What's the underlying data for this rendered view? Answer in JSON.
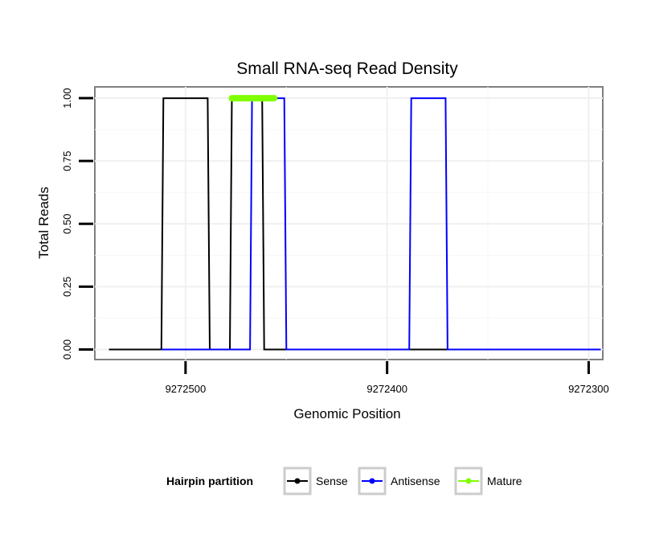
{
  "chart_data": {
    "type": "line",
    "title": "Small RNA-seq Read Density",
    "xlabel": "Genomic Position",
    "ylabel": "Total Reads",
    "x_reversed": true,
    "xlim": [
      9272545,
      9272293
    ],
    "ylim": [
      -0.04,
      1.045
    ],
    "x_ticks": [
      9272500,
      9272400,
      9272300
    ],
    "x_tick_labels": [
      "9272500",
      "9272400",
      "9272300"
    ],
    "y_ticks": [
      0,
      0.25,
      0.5,
      0.75,
      1
    ],
    "y_tick_labels": [
      "0.00",
      "0.25",
      "0.50",
      "0.75",
      "1.00"
    ],
    "grid": true,
    "legend": {
      "title": "Hairpin partition",
      "position": "bottom",
      "entries": [
        "Sense",
        "Antisense",
        "Mature"
      ]
    },
    "series": [
      {
        "name": "Sense",
        "color": "#000000",
        "x": [
          9272538,
          9272512,
          9272511,
          9272489,
          9272488,
          9272478,
          9272477,
          9272462,
          9272461,
          9272294
        ],
        "y": [
          0,
          0,
          1,
          1,
          0,
          0,
          1,
          1,
          0,
          0
        ]
      },
      {
        "name": "Antisense",
        "color": "#0000ff",
        "x": [
          9272512,
          9272468,
          9272467,
          9272451,
          9272450,
          9272389,
          9272388,
          9272371,
          9272370,
          9272294
        ],
        "y": [
          0,
          0,
          1,
          1,
          0,
          0,
          1,
          1,
          0,
          0
        ]
      },
      {
        "name": "Mature",
        "color": "#7fff00",
        "x": [
          9272477,
          9272456
        ],
        "y": [
          1,
          1
        ]
      }
    ]
  }
}
